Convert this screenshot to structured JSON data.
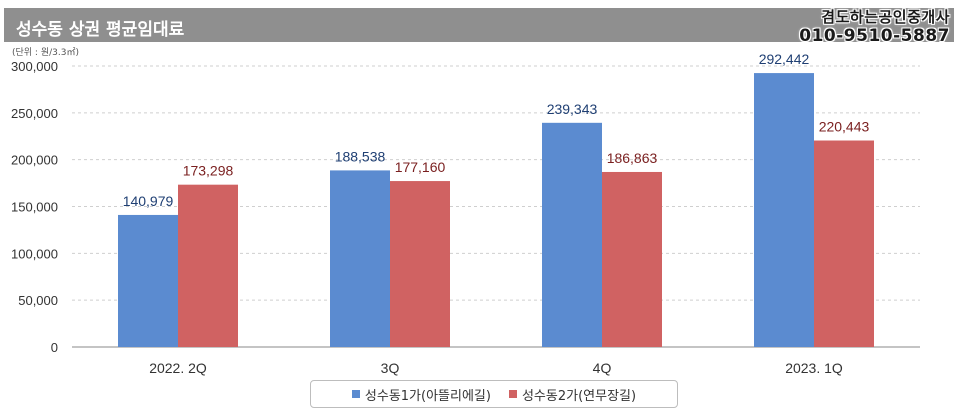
{
  "header": {
    "title": "성수동 상권 평균임대료",
    "watermark_line1": "겸도하는공인중개사",
    "watermark_line2": "010-9510-5887"
  },
  "chart_data": {
    "type": "bar",
    "title": "성수동 상권 평균임대료",
    "unit_label": "(단위 : 원/3.3㎡)",
    "categories": [
      "2022. 2Q",
      "3Q",
      "4Q",
      "2023. 1Q"
    ],
    "ylim": [
      0,
      300000
    ],
    "yticks": [
      0,
      50000,
      100000,
      150000,
      200000,
      250000,
      300000
    ],
    "ytick_labels": [
      "0",
      "50,000",
      "100,000",
      "150,000",
      "200,000",
      "250,000",
      "300,000"
    ],
    "grid": true,
    "legend_position": "bottom",
    "series": [
      {
        "name": "성수동1가(아뜰리에길)",
        "color": "#5b8bd0",
        "label_color": "#1f3f73",
        "values": [
          140979,
          188538,
          239343,
          292442
        ],
        "value_labels": [
          "140,979",
          "188,538",
          "239,343",
          "292,442"
        ]
      },
      {
        "name": "성수동2가(연무장길)",
        "color": "#d06262",
        "label_color": "#7a1f1f",
        "values": [
          173298,
          177160,
          186863,
          220443
        ],
        "value_labels": [
          "173,298",
          "177,160",
          "186,863",
          "220,443"
        ]
      }
    ]
  }
}
